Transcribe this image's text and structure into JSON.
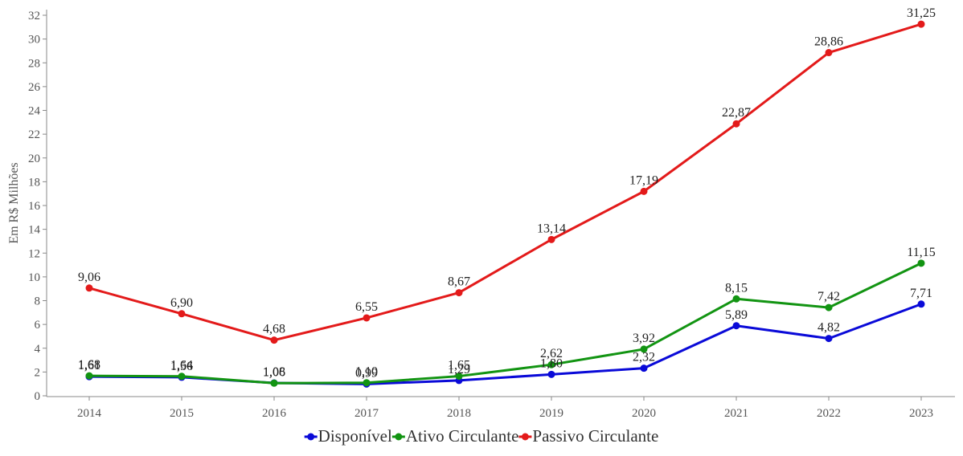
{
  "chart_data": {
    "type": "line",
    "title": "",
    "xlabel": "",
    "ylabel": "Em R$ Milhões",
    "x": [
      "2014",
      "2015",
      "2016",
      "2017",
      "2018",
      "2019",
      "2020",
      "2021",
      "2022",
      "2023"
    ],
    "ylim": [
      0,
      32
    ],
    "yticks": [
      0,
      2,
      4,
      6,
      8,
      10,
      12,
      14,
      16,
      18,
      20,
      22,
      24,
      26,
      28,
      30,
      32
    ],
    "grid": false,
    "legend_position": "bottom-center",
    "series": [
      {
        "name": "Disponível",
        "color": "#0a0ad8",
        "values": [
          1.61,
          1.56,
          1.08,
          0.99,
          1.29,
          1.8,
          2.32,
          5.89,
          4.82,
          7.71
        ],
        "labels": [
          "1,61",
          "1,56",
          "1,08",
          "0,99",
          "1,29",
          "1,80",
          "2,32",
          "5,89",
          "4,82",
          "7,71"
        ]
      },
      {
        "name": "Ativo Circulante",
        "color": "#129412",
        "values": [
          1.68,
          1.64,
          1.06,
          1.1,
          1.65,
          2.62,
          3.92,
          8.15,
          7.42,
          11.15
        ],
        "labels": [
          "1,68",
          "1,64",
          "1,06",
          "1,10",
          "1,65",
          "2,62",
          "3,92",
          "8,15",
          "7,42",
          "11,15"
        ]
      },
      {
        "name": "Passivo Circulante",
        "color": "#e31a1a",
        "values": [
          9.06,
          6.9,
          4.68,
          6.55,
          8.67,
          13.14,
          17.19,
          22.87,
          28.86,
          31.25
        ],
        "labels": [
          "9,06",
          "6,90",
          "4,68",
          "6,55",
          "8,67",
          "13,14",
          "17,19",
          "22,87",
          "28,86",
          "31,25"
        ]
      }
    ]
  }
}
